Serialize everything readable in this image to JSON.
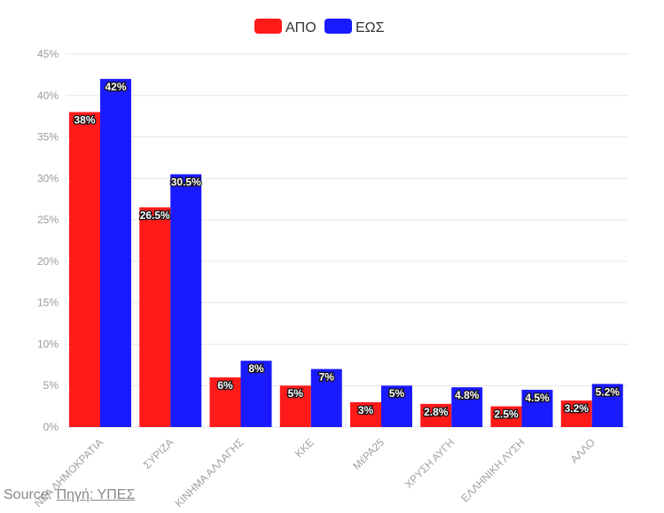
{
  "chart_data": {
    "type": "bar",
    "categories": [
      "ΝΕΑ ΔΗΜΟΚΡΑΤΙΑ",
      "ΣΥΡΙΖΑ",
      "ΚΙΝΗΜΑ ΑΛΛΑΓΗΣ",
      "ΚΚΕ",
      "ΜέΡΑ25",
      "ΧΡΥΣΗ ΑΥΓΗ",
      "ΕΛΛΗΝΙΚΗ ΛΥΣΗ",
      "ΑΛΛΟ"
    ],
    "series": [
      {
        "name": "ΑΠΟ",
        "color": "#ff1a1a",
        "values": [
          38,
          26.5,
          6,
          5,
          3,
          2.8,
          2.5,
          3.2
        ],
        "labels": [
          "38%",
          "26.5%",
          "6%",
          "5%",
          "3%",
          "2.8%",
          "2.5%",
          "3.2%"
        ]
      },
      {
        "name": "ΕΩΣ",
        "color": "#1a1aff",
        "values": [
          42,
          30.5,
          8,
          7,
          5,
          4.8,
          4.5,
          5.2
        ],
        "labels": [
          "42%",
          "30.5%",
          "8%",
          "7%",
          "5%",
          "4.8%",
          "4.5%",
          "5.2%"
        ]
      }
    ],
    "yticks": [
      "0%",
      "5%",
      "10%",
      "15%",
      "20%",
      "25%",
      "30%",
      "35%",
      "40%",
      "45%"
    ],
    "ylim": [
      0,
      45
    ],
    "grid": true,
    "legend": "top-center"
  },
  "source": {
    "prefix": "Source: ",
    "link": "Πηγή: ΥΠΕΣ"
  }
}
